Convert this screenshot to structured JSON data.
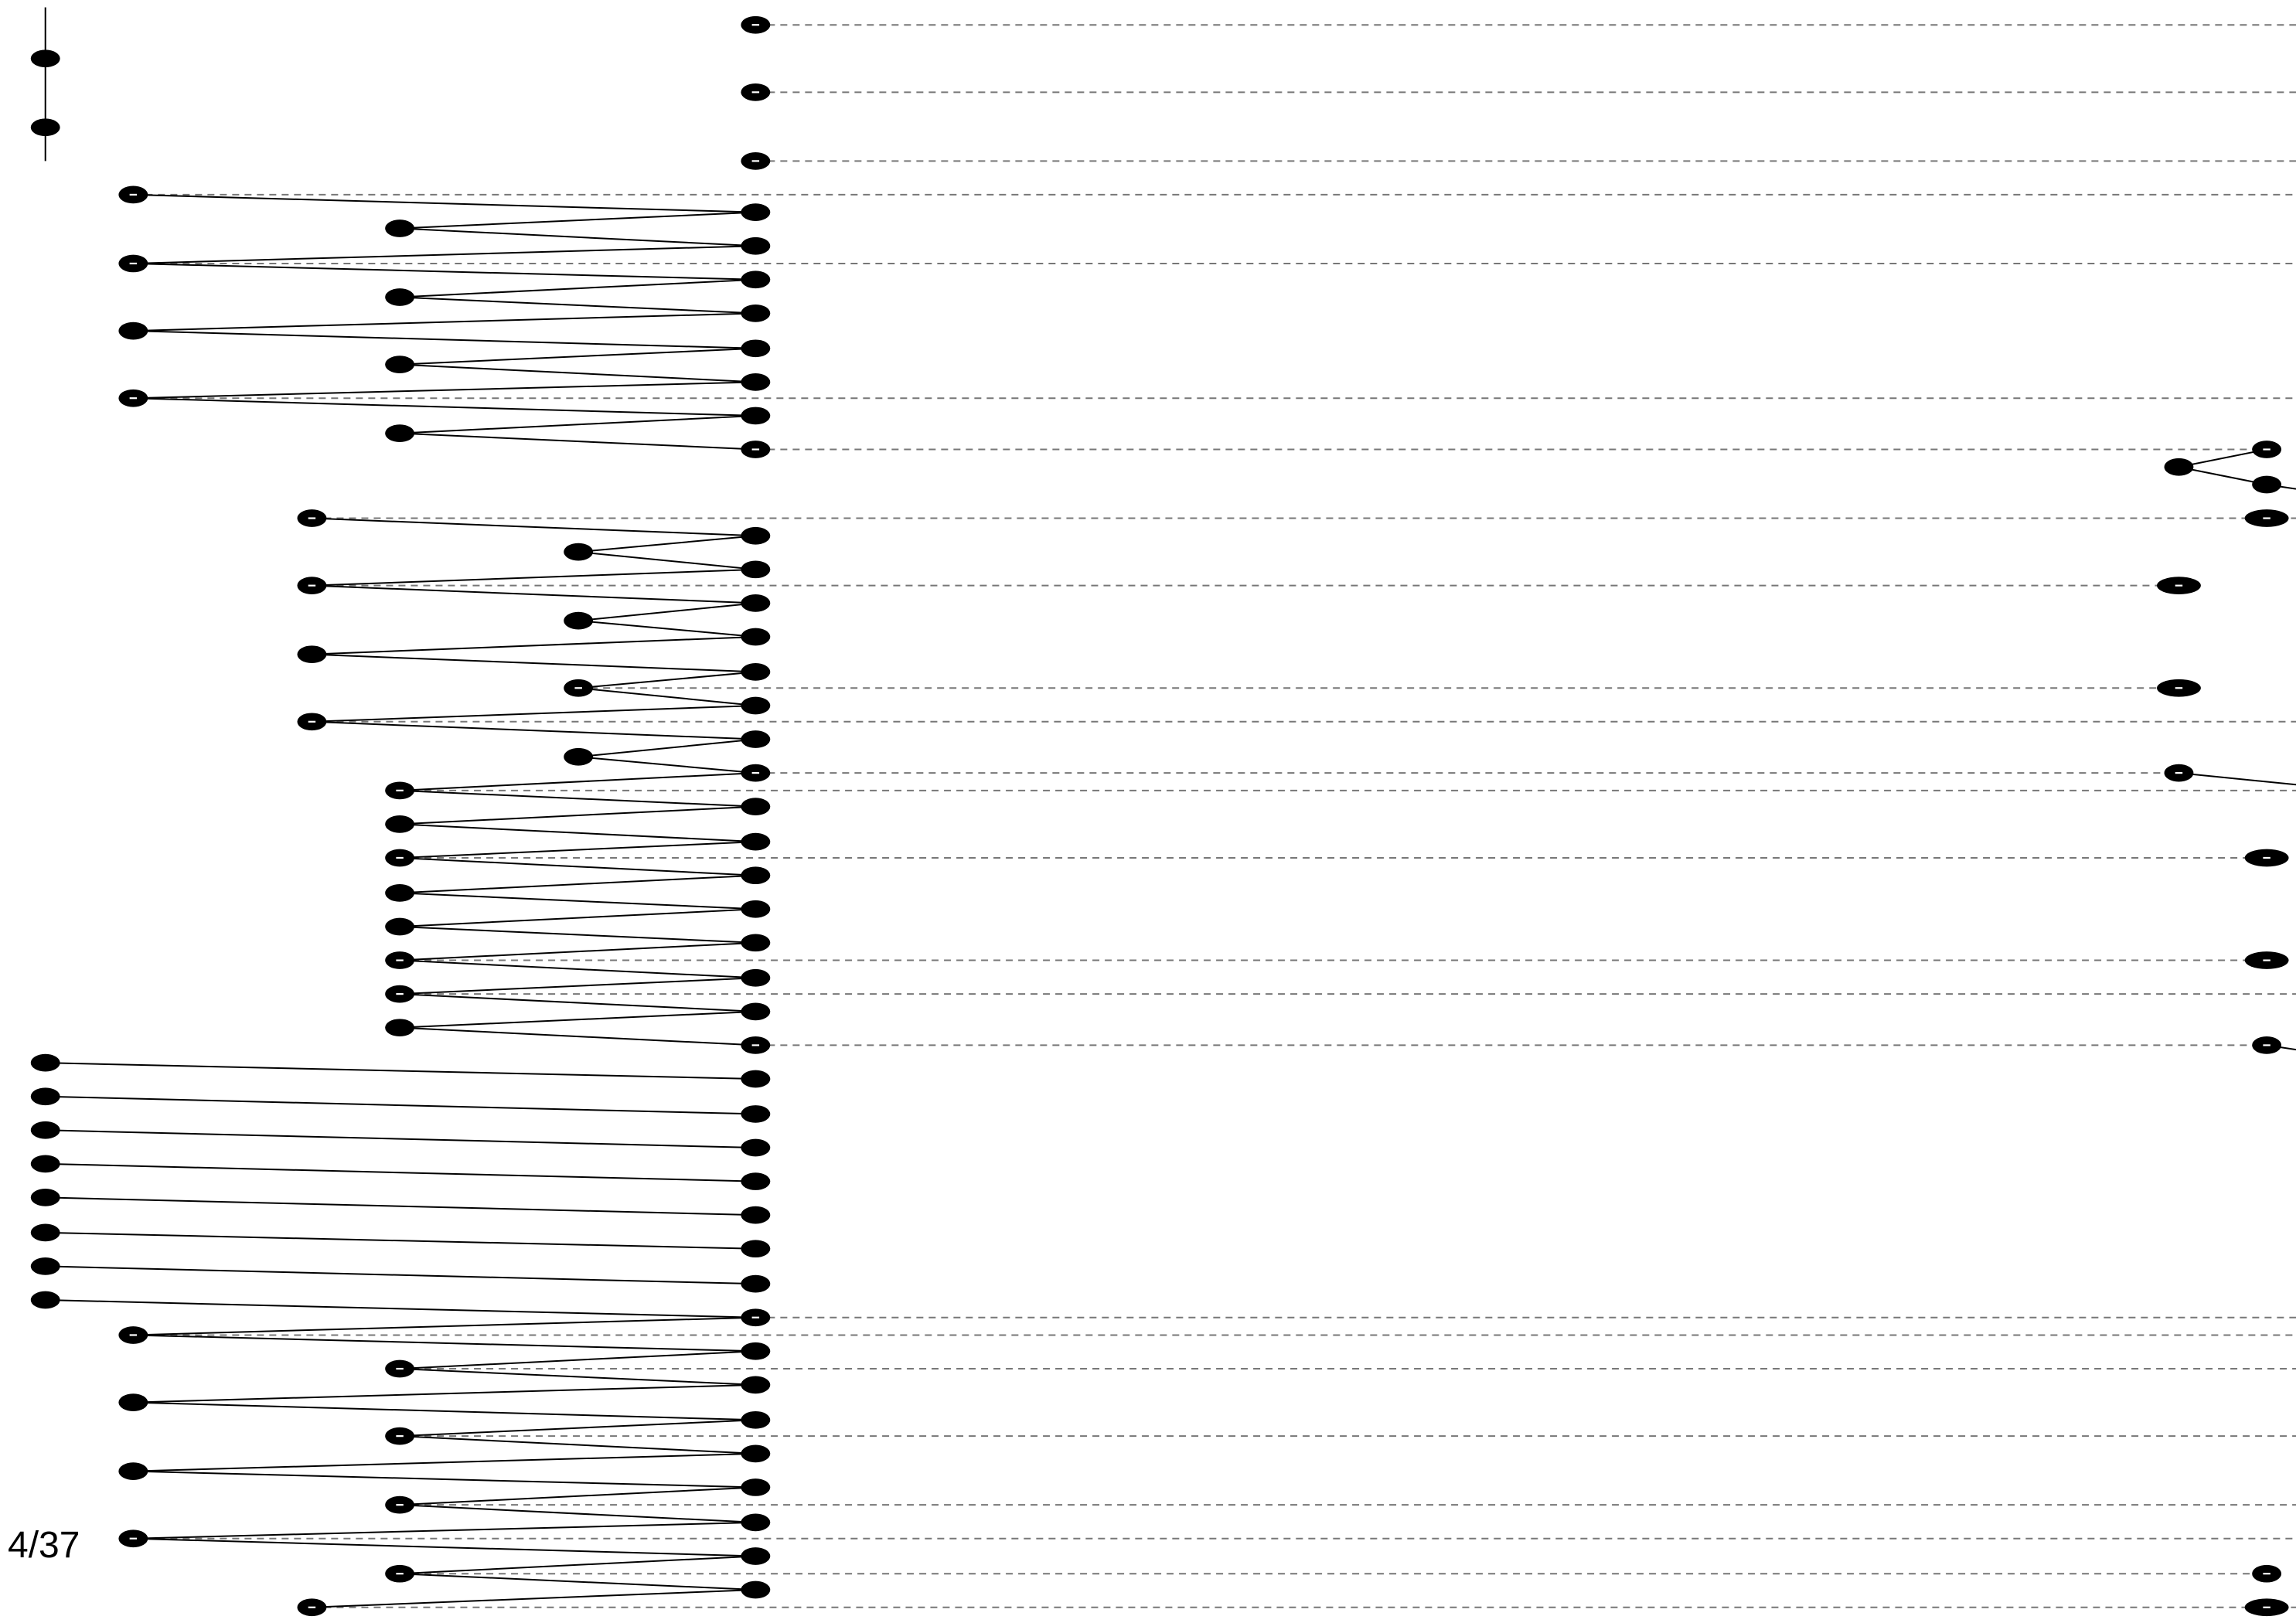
{
  "page_counter": "4/37",
  "colors": {
    "node": "#000000",
    "edge": "#000000",
    "guide": "#777777",
    "mark": "#ffffff"
  }
}
